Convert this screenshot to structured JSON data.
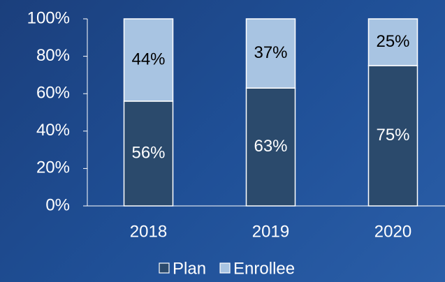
{
  "chart_data": {
    "type": "stacked_bar",
    "categories": [
      "2018",
      "2019",
      "2020"
    ],
    "series": [
      {
        "name": "Plan",
        "color": "#2b4a6c",
        "label_color": "#ffffff",
        "values": [
          56,
          63,
          75
        ],
        "value_labels": [
          "56%",
          "63%",
          "75%"
        ]
      },
      {
        "name": "Enrollee",
        "color": "#a8c4e2",
        "label_color": "#000000",
        "values": [
          44,
          37,
          25
        ],
        "value_labels": [
          "44%",
          "37%",
          "25%"
        ]
      }
    ],
    "ylim": [
      0,
      100
    ],
    "yticks": [
      {
        "value": 0,
        "label": "0%"
      },
      {
        "value": 20,
        "label": "20%"
      },
      {
        "value": 40,
        "label": "40%"
      },
      {
        "value": 60,
        "label": "60%"
      },
      {
        "value": 80,
        "label": "80%"
      },
      {
        "value": 100,
        "label": "100%"
      }
    ],
    "legend": "bottom"
  }
}
